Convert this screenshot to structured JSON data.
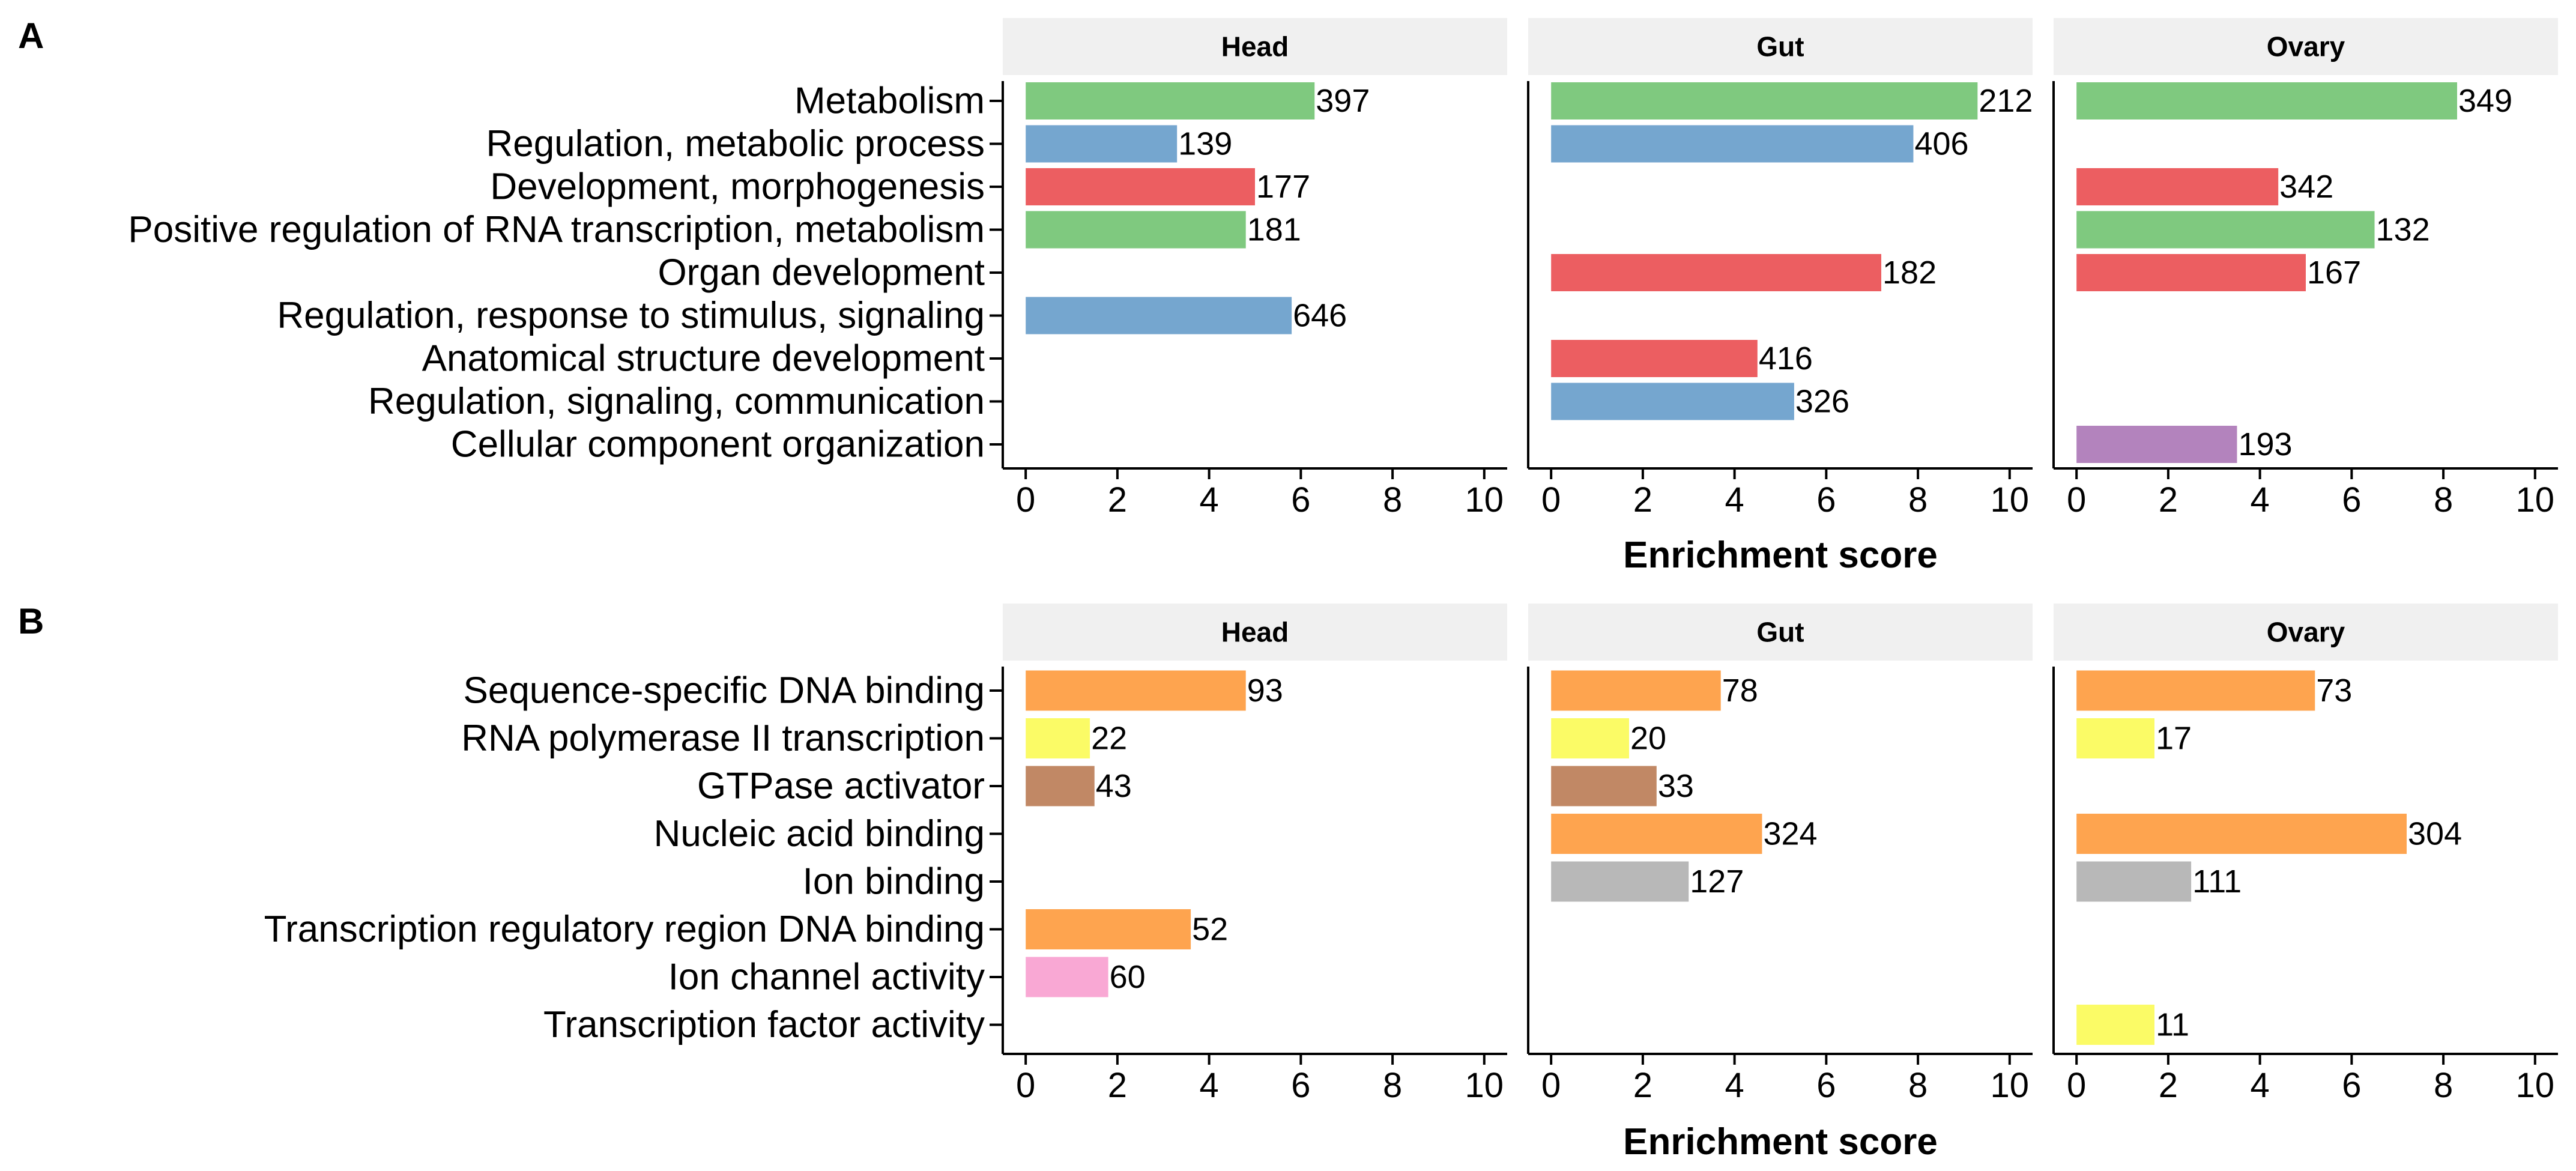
{
  "chart_data": [
    {
      "type": "bar",
      "orientation": "horizontal",
      "panel_label": "A",
      "facets": [
        "Head",
        "Gut",
        "Ovary"
      ],
      "categories": [
        "Metabolism",
        "Regulation, metabolic process",
        "Development, morphogenesis",
        "Positive regulation of RNA transcription, metabolism",
        "Organ development",
        "Regulation, response to stimulus, signaling",
        "Anatomical structure development",
        "Regulation, signaling, communication",
        "Cellular component organization"
      ],
      "bars": [
        {
          "facet": "Head",
          "category": "Metabolism",
          "value": 6.3,
          "label": "397",
          "color": "#7fc97f"
        },
        {
          "facet": "Head",
          "category": "Regulation, metabolic process",
          "value": 3.3,
          "label": "139",
          "color": "#75a6cf"
        },
        {
          "facet": "Head",
          "category": "Development, morphogenesis",
          "value": 5.0,
          "label": "177",
          "color": "#ec5e61"
        },
        {
          "facet": "Head",
          "category": "Positive regulation of RNA transcription, metabolism",
          "value": 4.8,
          "label": "181",
          "color": "#7fc97f"
        },
        {
          "facet": "Head",
          "category": "Regulation, response to stimulus, signaling",
          "value": 5.8,
          "label": "646",
          "color": "#75a6cf"
        },
        {
          "facet": "Gut",
          "category": "Metabolism",
          "value": 9.3,
          "label": "212",
          "color": "#7fc97f"
        },
        {
          "facet": "Gut",
          "category": "Regulation, metabolic process",
          "value": 7.9,
          "label": "406",
          "color": "#75a6cf"
        },
        {
          "facet": "Gut",
          "category": "Organ development",
          "value": 7.2,
          "label": "182",
          "color": "#ec5e61"
        },
        {
          "facet": "Gut",
          "category": "Anatomical structure development",
          "value": 4.5,
          "label": "416",
          "color": "#ec5e61"
        },
        {
          "facet": "Gut",
          "category": "Regulation, signaling, communication",
          "value": 5.3,
          "label": "326",
          "color": "#75a6cf"
        },
        {
          "facet": "Ovary",
          "category": "Metabolism",
          "value": 8.3,
          "label": "349",
          "color": "#7fc97f"
        },
        {
          "facet": "Ovary",
          "category": "Development, morphogenesis",
          "value": 4.4,
          "label": "342",
          "color": "#ec5e61"
        },
        {
          "facet": "Ovary",
          "category": "Positive regulation of RNA transcription, metabolism",
          "value": 6.5,
          "label": "132",
          "color": "#7fc97f"
        },
        {
          "facet": "Ovary",
          "category": "Organ development",
          "value": 5.0,
          "label": "167",
          "color": "#ec5e61"
        },
        {
          "facet": "Ovary",
          "category": "Cellular component organization",
          "value": 3.5,
          "label": "193",
          "color": "#b383bd"
        }
      ],
      "xlabel": "Enrichment score",
      "xlim": [
        -0.5,
        10.5
      ],
      "xticks": [
        0,
        2,
        4,
        6,
        8,
        10
      ],
      "grid": false,
      "legend": "none"
    },
    {
      "type": "bar",
      "orientation": "horizontal",
      "panel_label": "B",
      "facets": [
        "Head",
        "Gut",
        "Ovary"
      ],
      "categories": [
        "Sequence-specific DNA binding",
        "RNA polymerase II transcription",
        "GTPase activator",
        "Nucleic acid binding",
        "Ion binding",
        "Transcription regulatory region DNA binding",
        "Ion channel activity",
        "Transcription factor activity"
      ],
      "bars": [
        {
          "facet": "Head",
          "category": "Sequence-specific DNA binding",
          "value": 4.8,
          "label": "93",
          "color": "#fea44f"
        },
        {
          "facet": "Head",
          "category": "RNA polymerase II transcription",
          "value": 1.4,
          "label": "22",
          "color": "#fbfb66"
        },
        {
          "facet": "Head",
          "category": "GTPase activator",
          "value": 1.5,
          "label": "43",
          "color": "#c18865"
        },
        {
          "facet": "Head",
          "category": "Transcription regulatory region DNA binding",
          "value": 3.6,
          "label": "52",
          "color": "#fea44f"
        },
        {
          "facet": "Head",
          "category": "Ion channel activity",
          "value": 1.8,
          "label": "60",
          "color": "#f9a8d4"
        },
        {
          "facet": "Gut",
          "category": "Sequence-specific DNA binding",
          "value": 3.7,
          "label": "78",
          "color": "#fea44f"
        },
        {
          "facet": "Gut",
          "category": "RNA polymerase II transcription",
          "value": 1.7,
          "label": "20",
          "color": "#fbfb66"
        },
        {
          "facet": "Gut",
          "category": "GTPase activator",
          "value": 2.3,
          "label": "33",
          "color": "#c18865"
        },
        {
          "facet": "Gut",
          "category": "Nucleic acid binding",
          "value": 4.6,
          "label": "324",
          "color": "#fea44f"
        },
        {
          "facet": "Gut",
          "category": "Ion binding",
          "value": 3.0,
          "label": "127",
          "color": "#b8b8b8"
        },
        {
          "facet": "Ovary",
          "category": "Sequence-specific DNA binding",
          "value": 5.2,
          "label": "73",
          "color": "#fea44f"
        },
        {
          "facet": "Ovary",
          "category": "RNA polymerase II transcription",
          "value": 1.7,
          "label": "17",
          "color": "#fbfb66"
        },
        {
          "facet": "Ovary",
          "category": "Nucleic acid binding",
          "value": 7.2,
          "label": "304",
          "color": "#fea44f"
        },
        {
          "facet": "Ovary",
          "category": "Ion binding",
          "value": 2.5,
          "label": "111",
          "color": "#b8b8b8"
        },
        {
          "facet": "Ovary",
          "category": "Transcription factor activity",
          "value": 1.7,
          "label": "11",
          "color": "#fbfb66"
        }
      ],
      "xlabel": "Enrichment score",
      "xlim": [
        -0.5,
        10.5
      ],
      "xticks": [
        0,
        2,
        4,
        6,
        8,
        10
      ],
      "grid": false,
      "legend": "none"
    }
  ],
  "colors": {
    "strip_background": "#f0f0f0",
    "axis": "#000000"
  }
}
